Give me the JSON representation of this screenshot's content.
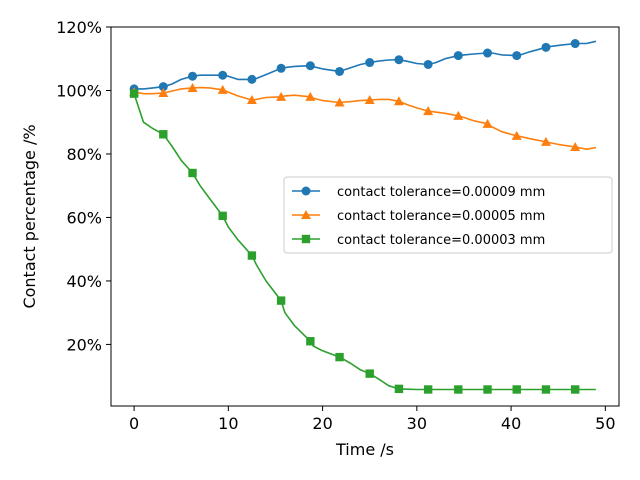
{
  "chart_data": {
    "type": "line",
    "title": "",
    "xlabel": "Time /s",
    "ylabel": "Contact percentage /%",
    "xlim": [
      -2.45,
      51.45
    ],
    "ylim": [
      0.006,
      1.2
    ],
    "xticks": [
      0,
      10,
      20,
      30,
      40,
      50
    ],
    "yticks": [
      0.2,
      0.4,
      0.6,
      0.8,
      1.0,
      1.2
    ],
    "ytick_labels": [
      "20%",
      "40%",
      "60%",
      "80%",
      "100%",
      "120%"
    ],
    "grid": false,
    "legend_position": "center-right",
    "series": [
      {
        "name": "contact tolerance=0.00009 mm",
        "color": "#1f77b4",
        "marker": "circle",
        "x": [
          0,
          1,
          2,
          3.1,
          4,
          5,
          6.2,
          7,
          8,
          9.4,
          10,
          11,
          12.5,
          13,
          14,
          15.6,
          16,
          17,
          18.7,
          19,
          20,
          21.8,
          23,
          24,
          25,
          26,
          27,
          28.1,
          29,
          30,
          31.2,
          32,
          33,
          34.4,
          35,
          36,
          37.5,
          38,
          39,
          40.6,
          41,
          42,
          43.7,
          44,
          45,
          46.8,
          48,
          49
        ],
        "y": [
          1.005,
          1.005,
          1.008,
          1.012,
          1.02,
          1.035,
          1.045,
          1.048,
          1.048,
          1.048,
          1.045,
          1.035,
          1.035,
          1.038,
          1.05,
          1.07,
          1.072,
          1.076,
          1.078,
          1.075,
          1.068,
          1.06,
          1.072,
          1.082,
          1.088,
          1.093,
          1.096,
          1.097,
          1.092,
          1.085,
          1.082,
          1.088,
          1.1,
          1.11,
          1.112,
          1.115,
          1.118,
          1.118,
          1.112,
          1.11,
          1.112,
          1.122,
          1.136,
          1.138,
          1.142,
          1.148,
          1.148,
          1.155
        ]
      },
      {
        "name": "contact tolerance=0.00005 mm",
        "color": "#ff7f0e",
        "marker": "triangle",
        "x": [
          0,
          1,
          2,
          3.1,
          4,
          5,
          6.2,
          7,
          8,
          9.4,
          10,
          11,
          12.5,
          13,
          14,
          15.6,
          16,
          17,
          18.7,
          19,
          20,
          21.8,
          23,
          24,
          25,
          26,
          27,
          28.1,
          29,
          30,
          31.2,
          32,
          33,
          34.4,
          35,
          36,
          37.5,
          38,
          39,
          40.6,
          41,
          42,
          43.7,
          44,
          45,
          46.8,
          48,
          49
        ],
        "y": [
          0.995,
          0.99,
          0.99,
          0.992,
          0.998,
          1.005,
          1.008,
          1.009,
          1.008,
          1.002,
          0.995,
          0.983,
          0.97,
          0.972,
          0.978,
          0.98,
          0.983,
          0.985,
          0.98,
          0.976,
          0.968,
          0.962,
          0.965,
          0.968,
          0.97,
          0.972,
          0.972,
          0.966,
          0.955,
          0.945,
          0.935,
          0.932,
          0.928,
          0.92,
          0.915,
          0.905,
          0.895,
          0.885,
          0.87,
          0.857,
          0.855,
          0.848,
          0.838,
          0.836,
          0.83,
          0.822,
          0.815,
          0.82
        ]
      },
      {
        "name": "contact tolerance=0.00003 mm",
        "color": "#2ca02c",
        "marker": "square",
        "x": [
          0,
          1,
          2,
          3.1,
          4,
          5,
          6.2,
          7,
          8,
          9.4,
          10,
          11,
          12.5,
          13,
          14,
          15.6,
          16,
          17,
          18.7,
          19,
          20,
          21.8,
          23,
          24,
          25,
          26,
          27,
          28.1,
          29,
          30,
          31.2,
          32,
          33,
          34.4,
          35,
          36,
          37.5,
          38,
          39,
          40.6,
          41,
          42,
          43.7,
          44,
          45,
          46.8,
          48,
          49
        ],
        "y": [
          0.99,
          0.9,
          0.88,
          0.862,
          0.825,
          0.78,
          0.74,
          0.7,
          0.66,
          0.605,
          0.57,
          0.53,
          0.48,
          0.45,
          0.4,
          0.338,
          0.3,
          0.26,
          0.21,
          0.195,
          0.18,
          0.16,
          0.14,
          0.12,
          0.108,
          0.09,
          0.07,
          0.06,
          0.059,
          0.058,
          0.058,
          0.058,
          0.058,
          0.058,
          0.058,
          0.058,
          0.058,
          0.058,
          0.058,
          0.058,
          0.058,
          0.058,
          0.058,
          0.058,
          0.058,
          0.058,
          0.058,
          0.058
        ],
        "markers": [
          0,
          3,
          6,
          9,
          12,
          15,
          18,
          21,
          24,
          27,
          30,
          33,
          36,
          39,
          42,
          45
        ]
      }
    ]
  }
}
